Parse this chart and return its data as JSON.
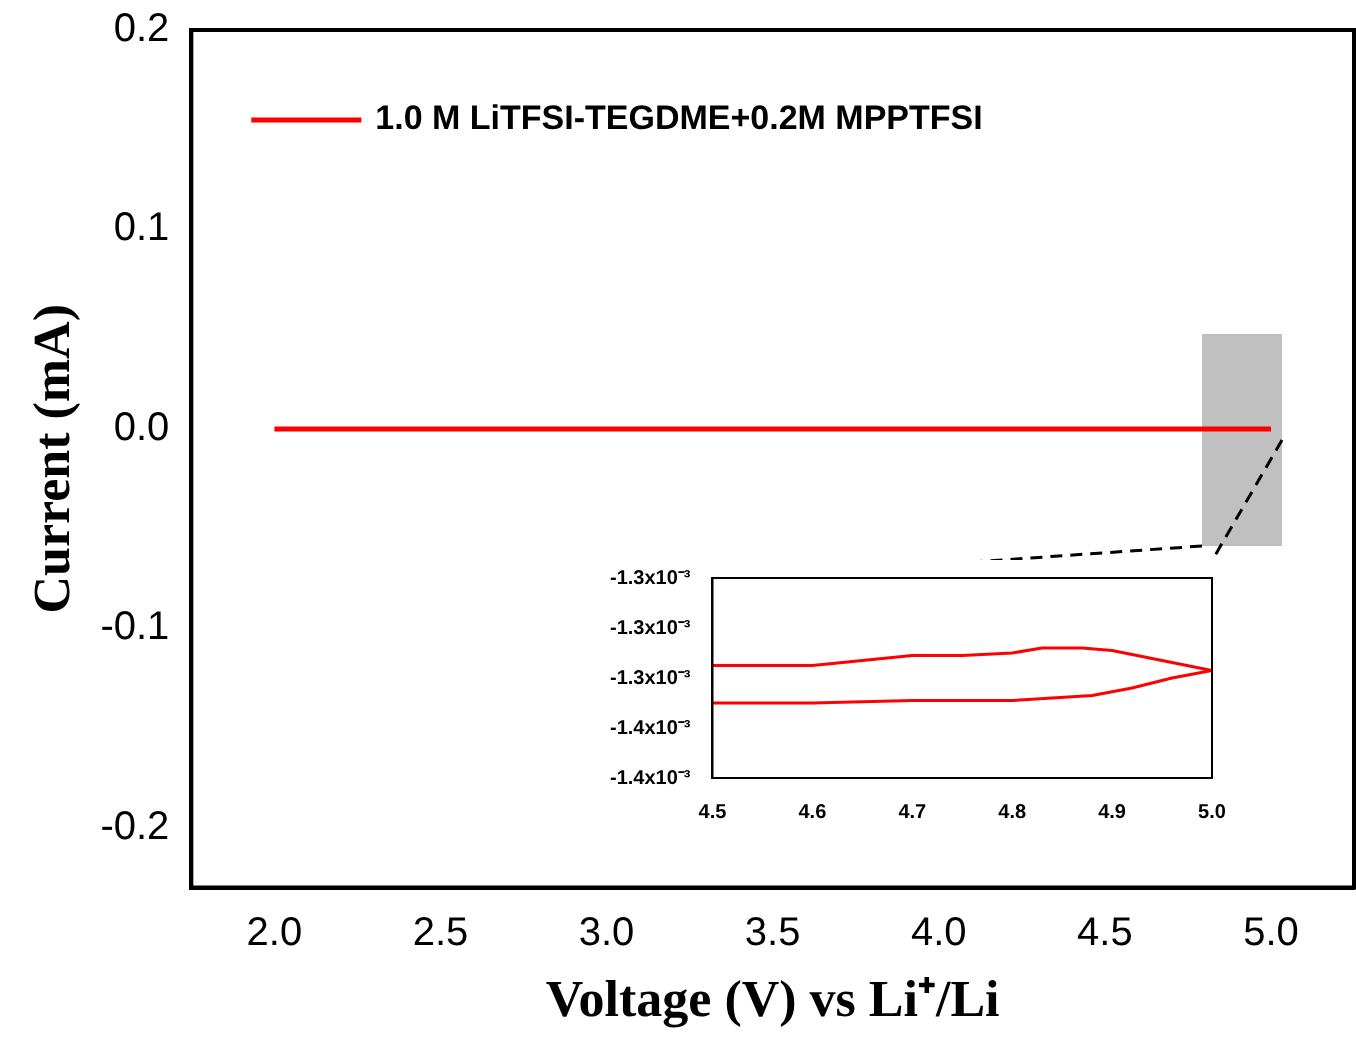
{
  "chart_data": [
    {
      "type": "line",
      "xlabel": "Voltage (V) vs Li⁺/Li",
      "ylabel": "Current (mA)",
      "xlim": [
        1.75,
        5.25
      ],
      "ylim": [
        -0.23,
        0.2
      ],
      "xticks": [
        {
          "value": 2,
          "label": "2.0"
        },
        {
          "value": 2.5,
          "label": "2.5"
        },
        {
          "value": 3,
          "label": "3.0"
        },
        {
          "value": 3.5,
          "label": "3.5"
        },
        {
          "value": 4,
          "label": "4.0"
        },
        {
          "value": 4.5,
          "label": "4.5"
        },
        {
          "value": 5,
          "label": "5.0"
        }
      ],
      "yticks": [
        {
          "value": -0.2,
          "label": "-0.2"
        },
        {
          "value": -0.1,
          "label": "-0.1"
        },
        {
          "value": 0,
          "label": "0.0"
        },
        {
          "value": 0.1,
          "label": "0.1"
        },
        {
          "value": 0.2,
          "label": "0.2"
        }
      ],
      "grid": false,
      "legend": "top left",
      "marker": "none",
      "line_style": "solid",
      "series": [
        {
          "name": "1.0 M LiTFSI-TEGDME+0.2M MPPTFSI",
          "color": "#ff0000",
          "x": [
            2,
            3,
            4,
            5
          ],
          "values": [
            0,
            0,
            0,
            0
          ]
        }
      ]
    },
    {
      "type": "line",
      "xlim": [
        4.5,
        5.0
      ],
      "ylim": [
        -0.00138,
        -0.0013
      ],
      "xticks": [
        {
          "value": 4.5,
          "label": "4.5"
        },
        {
          "value": 4.6,
          "label": "4.6"
        },
        {
          "value": 4.7,
          "label": "4.7"
        },
        {
          "value": 4.8,
          "label": "4.8"
        },
        {
          "value": 4.9,
          "label": "4.9"
        },
        {
          "value": 5.0,
          "label": "5.0"
        }
      ],
      "yticks": [
        {
          "value": -0.00138,
          "label": "-1.4x10⁻³"
        },
        {
          "value": -0.00136,
          "label": "-1.4x10⁻³"
        },
        {
          "value": -0.00134,
          "label": "-1.3x10⁻³"
        },
        {
          "value": -0.00132,
          "label": "-1.3x10⁻³"
        },
        {
          "value": -0.0013,
          "label": "-1.3x10⁻³"
        }
      ],
      "grid": false,
      "marker": "none",
      "line_style": "solid",
      "series": [
        {
          "color": "#ff0000",
          "x": [
            4.5,
            4.55,
            4.6,
            4.65,
            4.7,
            4.75,
            4.8,
            4.83,
            4.87,
            4.9,
            4.95,
            5.0,
            4.96,
            4.92,
            4.88,
            4.84,
            4.8,
            4.7,
            4.6,
            4.5
          ],
          "values": [
            -0.001335,
            -0.001335,
            -0.001335,
            -0.001333,
            -0.001331,
            -0.001331,
            -0.00133,
            -0.001328,
            -0.001328,
            -0.001329,
            -0.001333,
            -0.001337,
            -0.00134,
            -0.001344,
            -0.001347,
            -0.001348,
            -0.001349,
            -0.001349,
            -0.00135,
            -0.00135
          ]
        }
      ]
    }
  ]
}
